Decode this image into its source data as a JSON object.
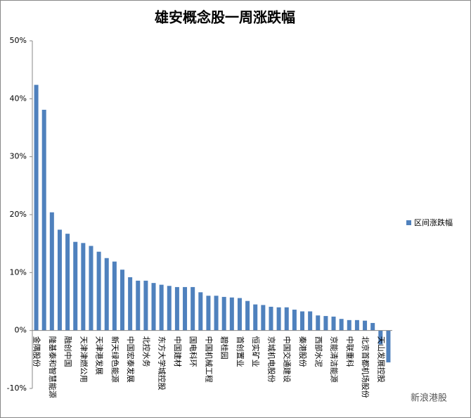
{
  "chart_data": {
    "type": "bar",
    "title": "雄安概念股一周涨跌幅",
    "categories": [
      "金隅股份",
      null,
      "隆基泰和智慧能源",
      null,
      "融创中国",
      null,
      "天津津燃公用",
      null,
      "天津港发展",
      null,
      "新天绿色能源",
      null,
      "中国宏泰发展",
      null,
      "北控水务",
      null,
      "东方大学城控股",
      null,
      "中国建材",
      null,
      "国电科环",
      null,
      "中国机械工程",
      null,
      "碧桂园",
      null,
      "首创置业",
      null,
      "恒实矿业",
      null,
      "京城机电股份",
      null,
      "中国交通建设",
      null,
      "秦港股份",
      null,
      "西部水泥",
      null,
      "京能清洁能源",
      null,
      "中联重科",
      null,
      "北京首都机场股份",
      null,
      "天山发展控股",
      null
    ],
    "series": [
      {
        "name": "区间涨跌幅",
        "color": "#4f81bd",
        "values": [
          42.4,
          38.1,
          20.4,
          17.4,
          16.7,
          15.3,
          15.1,
          14.6,
          13.6,
          12.5,
          11.9,
          10.5,
          9.2,
          8.6,
          8.6,
          8.2,
          7.9,
          7.7,
          7.5,
          7.5,
          7.5,
          6.6,
          6.0,
          6.0,
          5.8,
          5.7,
          5.6,
          5.1,
          4.5,
          4.4,
          4.1,
          4.0,
          4.0,
          3.6,
          3.3,
          3.3,
          2.6,
          2.5,
          2.4,
          2.0,
          1.8,
          1.8,
          1.7,
          1.3,
          -2.4,
          -5.5
        ]
      }
    ],
    "ylim": [
      -10,
      50
    ],
    "yticks": [
      {
        "value": -10,
        "label": "-10%"
      },
      {
        "value": 0,
        "label": "0%"
      },
      {
        "value": 10,
        "label": "10%"
      },
      {
        "value": 20,
        "label": "20%"
      },
      {
        "value": 30,
        "label": "30%"
      },
      {
        "value": 40,
        "label": "40%"
      },
      {
        "value": 50,
        "label": "50%"
      }
    ],
    "grid": false,
    "legend": "right",
    "watermark": "新浪港股"
  }
}
